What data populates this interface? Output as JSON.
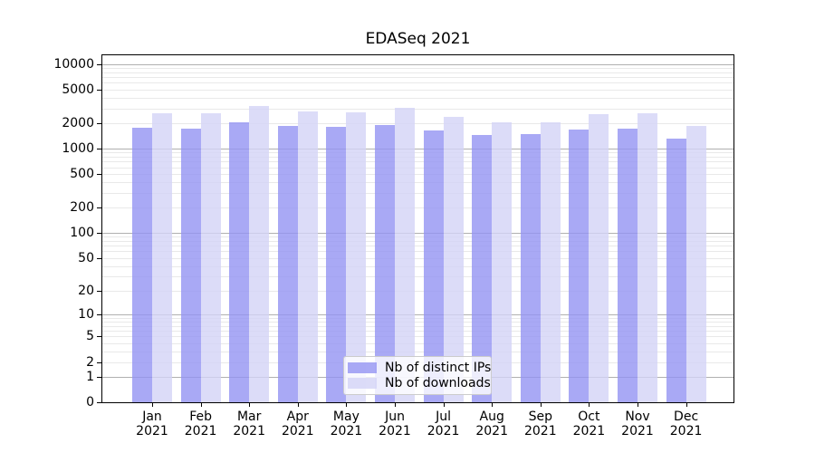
{
  "title": "EDASeq 2021",
  "chart_data": {
    "type": "bar",
    "title": "EDASeq 2021",
    "xlabel": "",
    "ylabel": "",
    "scale": "log10(1+y)",
    "grid": true,
    "legend_position": "lower-center",
    "year_label": "2021",
    "categories": [
      "Jan",
      "Feb",
      "Mar",
      "Apr",
      "May",
      "Jun",
      "Jul",
      "Aug",
      "Sep",
      "Oct",
      "Nov",
      "Dec"
    ],
    "series": [
      {
        "name": "Nb of distinct IPs",
        "color": "#9494f2",
        "opacity": 0.8,
        "values": [
          1760,
          1710,
          2070,
          1870,
          1830,
          1920,
          1660,
          1460,
          1490,
          1680,
          1720,
          1310
        ]
      },
      {
        "name": "Nb of downloads",
        "color": "#d3d3f6",
        "opacity": 0.8,
        "values": [
          2600,
          2600,
          3190,
          2780,
          2670,
          3020,
          2360,
          2070,
          2070,
          2540,
          2600,
          1870
        ]
      }
    ],
    "y_ticks": [
      10000,
      5000,
      2000,
      1000,
      500,
      200,
      100,
      50,
      20,
      10,
      5,
      2,
      1,
      0
    ],
    "ylim": [
      0,
      12700
    ],
    "grid_major_values": [
      1,
      10,
      100,
      1000,
      10000
    ],
    "grid_minor_base": [
      2,
      3,
      4,
      5,
      6,
      7,
      8,
      9
    ],
    "colors": {
      "grid_minor": "#e9e9e9",
      "grid_major": "#b0b0b0",
      "axis": "#000000",
      "legend_border": "#cccccc"
    }
  }
}
